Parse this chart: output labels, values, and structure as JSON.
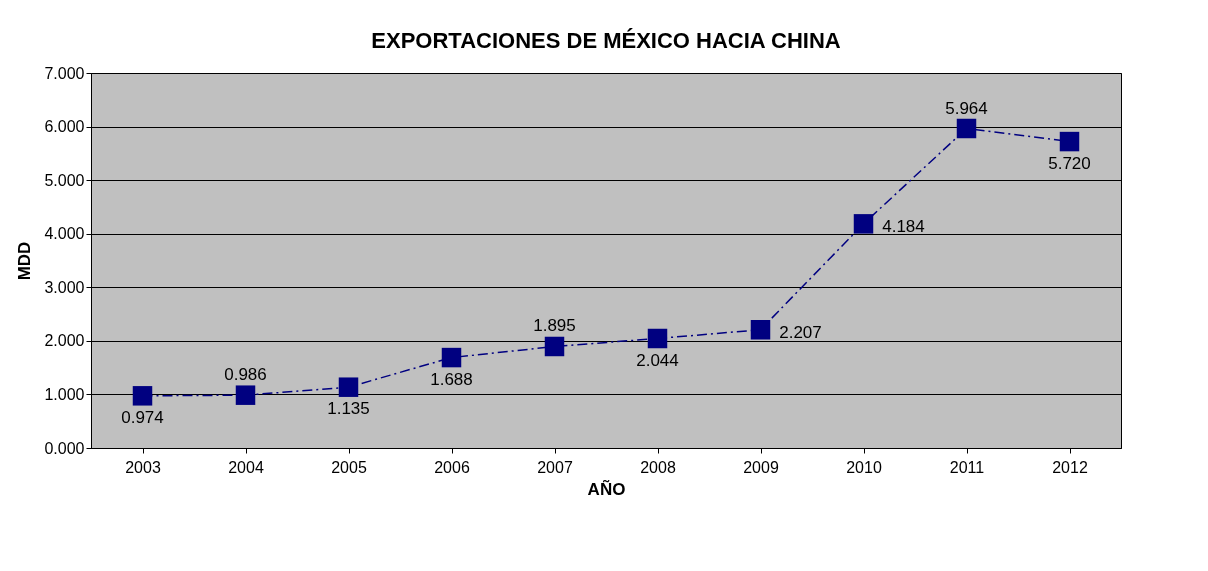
{
  "chart_data": {
    "type": "line",
    "title": "EXPORTACIONES DE MÉXICO HACIA CHINA",
    "xlabel": "AÑO",
    "ylabel": "MDD",
    "categories": [
      "2003",
      "2004",
      "2005",
      "2006",
      "2007",
      "2008",
      "2009",
      "2010",
      "2011",
      "2012"
    ],
    "series": [
      {
        "color": "#000080",
        "values": [
          0.974,
          0.986,
          1.135,
          1.688,
          1.895,
          2.044,
          2.207,
          4.184,
          5.964,
          5.72
        ],
        "value_labels": [
          "0.974",
          "0.986",
          "1.135",
          "1.688",
          "1.895",
          "2.044",
          "2.207",
          "4.184",
          "5.964",
          "5.720"
        ]
      }
    ],
    "ylim": [
      0,
      7
    ],
    "yticks": [
      {
        "value": 0,
        "label": "0.000"
      },
      {
        "value": 1,
        "label": "1.000"
      },
      {
        "value": 2,
        "label": "2.000"
      },
      {
        "value": 3,
        "label": "3.000"
      },
      {
        "value": 4,
        "label": "4.000"
      },
      {
        "value": 5,
        "label": "5.000"
      },
      {
        "value": 6,
        "label": "6.000"
      },
      {
        "value": 7,
        "label": "7.000"
      }
    ],
    "grid": "y",
    "legend": false,
    "marker": "square",
    "line_style": "dashed"
  }
}
